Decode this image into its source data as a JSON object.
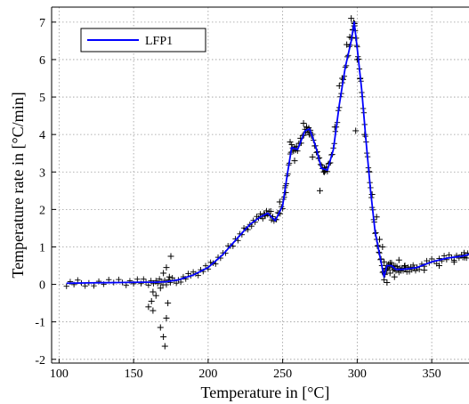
{
  "chart_data": {
    "type": "line",
    "title": "",
    "xlabel": "Temperature in [°C]",
    "ylabel": "Temperature rate in [°C/min]",
    "xlim": [
      95,
      375
    ],
    "ylim": [
      -2.1,
      7.4
    ],
    "xticks": [
      100,
      150,
      200,
      250,
      300,
      350
    ],
    "yticks": [
      -2,
      -1,
      0,
      1,
      2,
      3,
      4,
      5,
      6,
      7
    ],
    "grid": true,
    "legend": {
      "position": "top-left",
      "entries": [
        "LFP1"
      ]
    },
    "series": [
      {
        "name": "LFP1",
        "style": "line",
        "color": "#0000ff",
        "x": [
          105,
          120,
          140,
          155,
          165,
          172,
          180,
          190,
          200,
          210,
          220,
          228,
          235,
          240,
          245,
          250,
          253,
          256,
          260,
          265,
          268,
          272,
          276,
          280,
          284,
          288,
          292,
          296,
          298,
          300,
          303,
          306,
          309,
          312,
          315,
          318,
          320,
          323,
          326,
          330,
          335,
          340,
          350,
          360,
          370,
          375
        ],
        "y": [
          0.03,
          0.04,
          0.05,
          0.06,
          0.06,
          0.07,
          0.12,
          0.25,
          0.45,
          0.8,
          1.25,
          1.6,
          1.8,
          1.9,
          1.7,
          2.1,
          2.9,
          3.65,
          3.6,
          4.1,
          4.15,
          3.7,
          3.1,
          3.05,
          3.6,
          4.8,
          5.8,
          6.5,
          7.0,
          6.3,
          5.2,
          3.8,
          2.5,
          1.4,
          0.8,
          0.2,
          0.5,
          0.5,
          0.4,
          0.4,
          0.42,
          0.45,
          0.6,
          0.7,
          0.75,
          0.8
        ]
      },
      {
        "name": "",
        "style": "marker",
        "marker": "+",
        "color": "#000000",
        "x": [
          162,
          163,
          165,
          168,
          170,
          171,
          172,
          173,
          175,
          160,
          163,
          168,
          170,
          172,
          174,
          238,
          242,
          248,
          252,
          255,
          258,
          262,
          264,
          266,
          268,
          270,
          275,
          278,
          285,
          288,
          290,
          293,
          295,
          296,
          297,
          298,
          299,
          300,
          302,
          305,
          308,
          310,
          313,
          315,
          317,
          318,
          320,
          322,
          325,
          328,
          332,
          340,
          345,
          355,
          365,
          372
        ],
        "y": [
          -0.45,
          -0.7,
          -0.3,
          -1.15,
          -1.4,
          -1.65,
          -0.9,
          -0.5,
          0.75,
          -0.6,
          -0.2,
          -0.1,
          0.3,
          0.45,
          0.2,
          1.85,
          1.95,
          2.2,
          2.45,
          3.8,
          3.3,
          3.9,
          4.3,
          4.2,
          4.0,
          3.4,
          2.5,
          3.0,
          4.2,
          5.3,
          5.5,
          6.4,
          6.6,
          7.1,
          6.8,
          6.9,
          4.1,
          6.0,
          5.5,
          4.0,
          3.0,
          2.4,
          1.8,
          1.2,
          1.0,
          0.6,
          0.05,
          0.3,
          0.2,
          0.65,
          0.5,
          0.45,
          0.38,
          0.5,
          0.6,
          0.72
        ]
      }
    ]
  }
}
